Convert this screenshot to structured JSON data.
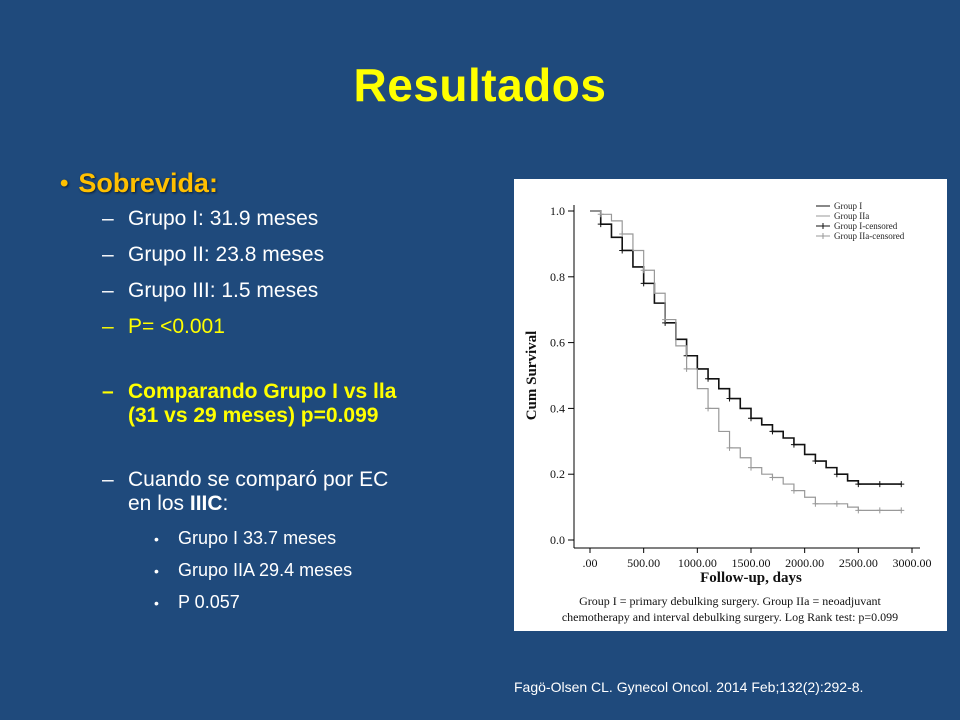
{
  "slide": {
    "title": "Resultados",
    "heading": "Sobrevida:",
    "items": [
      "Grupo I: 31.9 meses",
      "Grupo II: 23.8 meses",
      "Grupo III: 1.5 meses",
      "P= <0.001"
    ],
    "comparison": [
      "Comparando Grupo I vs lla",
      "(31 vs 29 meses) p=0.099"
    ],
    "ec_line": [
      "Cuando se comparó por EC",
      "en los "
    ],
    "ec_bold": "IIIC",
    "ec_colon": ":",
    "subitems": [
      "Grupo I 33.7 meses",
      "Grupo IIA 29.4 meses",
      "P 0.057"
    ],
    "citation": "Fagö-Olsen CL. Gynecol Oncol. 2014 Feb;132(2):292-8."
  },
  "chart_data": {
    "type": "line",
    "xlabel": "Follow-up, days",
    "ylabel": "Cum Survival",
    "xlim": [
      0,
      3000
    ],
    "ylim": [
      0,
      1.0
    ],
    "x_ticks": [
      ".00",
      "500.00",
      "1000.00",
      "1500.00",
      "2000.00",
      "2500.00",
      "3000.00"
    ],
    "y_ticks": [
      "0.0",
      "0.2",
      "0.4",
      "0.6",
      "0.8",
      "1.0"
    ],
    "legend": [
      "Group I",
      "Group IIa",
      "Group I-censored",
      "Group IIa-censored"
    ],
    "legend_position": "top-right",
    "caption": [
      "Group I = primary debulking surgery. Group IIa = neoadjuvant",
      "chemotherapy and interval debulking surgery. Log Rank test: p=0.099"
    ],
    "series": [
      {
        "name": "Group I",
        "color": "#111111",
        "x": [
          0,
          100,
          200,
          300,
          400,
          500,
          600,
          700,
          800,
          900,
          1000,
          1100,
          1200,
          1300,
          1400,
          1500,
          1600,
          1700,
          1800,
          1900,
          2000,
          2100,
          2200,
          2300,
          2400,
          2500,
          2600,
          2700,
          2800,
          2900
        ],
        "y": [
          1.0,
          0.96,
          0.92,
          0.88,
          0.83,
          0.78,
          0.72,
          0.66,
          0.61,
          0.56,
          0.52,
          0.49,
          0.46,
          0.43,
          0.4,
          0.37,
          0.35,
          0.33,
          0.31,
          0.29,
          0.26,
          0.24,
          0.22,
          0.2,
          0.18,
          0.17,
          0.17,
          0.17,
          0.17,
          0.17
        ]
      },
      {
        "name": "Group IIa",
        "color": "#999999",
        "x": [
          0,
          100,
          200,
          300,
          400,
          500,
          600,
          700,
          800,
          900,
          1000,
          1100,
          1200,
          1300,
          1400,
          1500,
          1600,
          1700,
          1800,
          1900,
          2000,
          2100,
          2200,
          2300,
          2400,
          2500,
          2600,
          2700,
          2800,
          2900
        ],
        "y": [
          1.0,
          0.99,
          0.97,
          0.93,
          0.88,
          0.82,
          0.75,
          0.67,
          0.59,
          0.52,
          0.46,
          0.4,
          0.33,
          0.28,
          0.25,
          0.22,
          0.2,
          0.19,
          0.17,
          0.15,
          0.13,
          0.11,
          0.11,
          0.11,
          0.1,
          0.09,
          0.09,
          0.09,
          0.09,
          0.09
        ]
      }
    ]
  }
}
